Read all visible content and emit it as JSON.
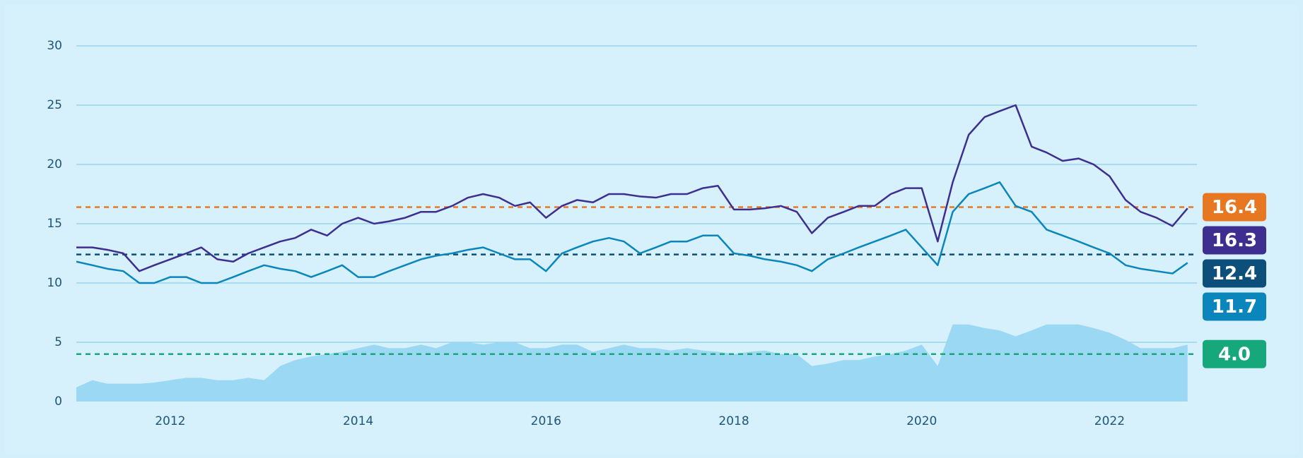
{
  "chart_data": {
    "type": "line",
    "x": [
      2011.0,
      2011.17,
      2011.33,
      2011.5,
      2011.67,
      2011.83,
      2012.0,
      2012.17,
      2012.33,
      2012.5,
      2012.67,
      2012.83,
      2013.0,
      2013.17,
      2013.33,
      2013.5,
      2013.67,
      2013.83,
      2014.0,
      2014.17,
      2014.33,
      2014.5,
      2014.67,
      2014.83,
      2015.0,
      2015.17,
      2015.33,
      2015.5,
      2015.67,
      2015.83,
      2016.0,
      2016.17,
      2016.33,
      2016.5,
      2016.67,
      2016.83,
      2017.0,
      2017.17,
      2017.33,
      2017.5,
      2017.67,
      2017.83,
      2018.0,
      2018.17,
      2018.33,
      2018.5,
      2018.67,
      2018.83,
      2019.0,
      2019.17,
      2019.33,
      2019.5,
      2019.67,
      2019.83,
      2020.0,
      2020.17,
      2020.33,
      2020.5,
      2020.67,
      2020.83,
      2021.0,
      2021.17,
      2021.33,
      2021.5,
      2021.67,
      2021.83,
      2022.0,
      2022.17,
      2022.33,
      2022.5,
      2022.67,
      2022.83
    ],
    "area": {
      "color": "#9ad8f3",
      "values": [
        1.2,
        1.8,
        1.5,
        1.5,
        1.5,
        1.6,
        1.8,
        2,
        2,
        1.8,
        1.8,
        2,
        1.8,
        3,
        3.5,
        3.8,
        4,
        4.2,
        4.5,
        4.8,
        4.5,
        4.5,
        4.8,
        4.5,
        5,
        5,
        4.8,
        5,
        5,
        4.5,
        4.5,
        4.8,
        4.8,
        4.2,
        4.5,
        4.8,
        4.5,
        4.5,
        4.3,
        4.5,
        4.3,
        4.2,
        4,
        4.2,
        4.3,
        4,
        4,
        3,
        3.2,
        3.5,
        3.5,
        3.8,
        4,
        4.3,
        4.8,
        3,
        6.5,
        6.5,
        6.2,
        6,
        5.5,
        6,
        6.5,
        6.5,
        6.5,
        6.2,
        5.8,
        5.2,
        4.5,
        4.5,
        4.5,
        4.8
      ]
    },
    "series": [
      {
        "color": "#3d2e8f",
        "values": [
          13,
          13,
          12.8,
          12.5,
          11,
          11.5,
          12,
          12.5,
          13,
          12,
          11.8,
          12.5,
          13,
          13.5,
          13.8,
          14.5,
          14,
          15,
          15.5,
          15,
          15.2,
          15.5,
          16,
          16,
          16.5,
          17.2,
          17.5,
          17.2,
          16.5,
          16.8,
          15.5,
          16.5,
          17,
          16.8,
          17.5,
          17.5,
          17.3,
          17.2,
          17.5,
          17.5,
          18,
          18.2,
          16.2,
          16.2,
          16.3,
          16.5,
          16,
          14.2,
          15.5,
          16,
          16.5,
          16.5,
          17.5,
          18,
          18,
          13.5,
          18.5,
          22.5,
          24,
          24.5,
          25,
          21.5,
          21,
          20.3,
          20.5,
          20,
          19,
          17,
          16,
          15.5,
          14.8,
          16.3
        ]
      },
      {
        "color": "#0a86bc",
        "values": [
          11.8,
          11.5,
          11.2,
          11,
          10,
          10,
          10.5,
          10.5,
          10,
          10,
          10.5,
          11,
          11.5,
          11.2,
          11,
          10.5,
          11,
          11.5,
          10.5,
          10.5,
          11,
          11.5,
          12,
          12.3,
          12.5,
          12.8,
          13,
          12.5,
          12,
          12,
          11,
          12.5,
          13,
          13.5,
          13.8,
          13.5,
          12.5,
          13,
          13.5,
          13.5,
          14,
          14,
          12.5,
          12.3,
          12,
          11.8,
          11.5,
          11,
          12,
          12.5,
          13,
          13.5,
          14,
          14.5,
          13,
          11.5,
          16,
          17.5,
          18,
          18.5,
          16.5,
          16,
          14.5,
          14,
          13.5,
          13,
          12.5,
          11.5,
          11.2,
          11,
          10.8,
          11.7
        ]
      }
    ],
    "reference_lines": [
      {
        "value": 16.4,
        "color": "#e87722"
      },
      {
        "value": 12.4,
        "color": "#0b4f7a"
      },
      {
        "value": 4,
        "label": "4.0",
        "color": "#16a77a"
      }
    ],
    "xlim": [
      2011,
      2022.93
    ],
    "xticks": [
      2012,
      2014,
      2016,
      2018,
      2020,
      2022
    ],
    "ylim": [
      0,
      30
    ],
    "yticks": [
      0,
      5,
      10,
      15,
      20,
      25,
      30
    ],
    "grid": true
  }
}
